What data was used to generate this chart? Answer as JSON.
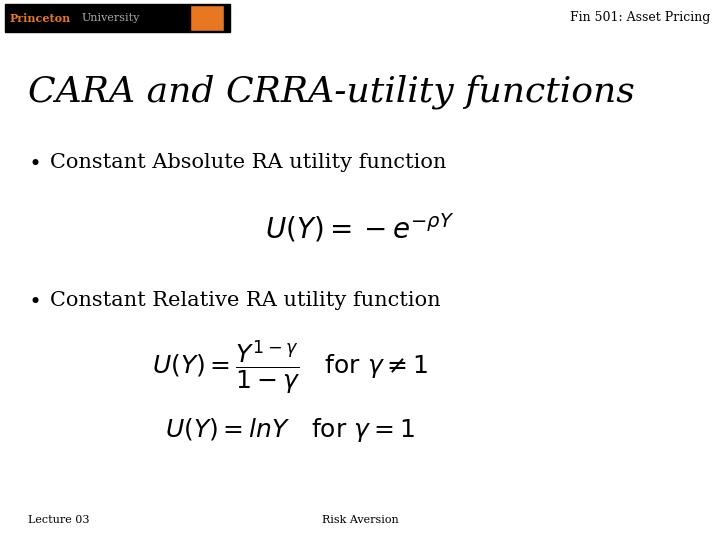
{
  "background_color": "#ffffff",
  "header_text": "Fin 501: Asset Pricing",
  "header_fontsize": 9,
  "header_color": "#000000",
  "title_text": "CARA and CRRA-utility functions",
  "title_fontsize": 26,
  "title_color": "#000000",
  "bullet1_text": "Constant Absolute RA utility function",
  "bullet1_fontsize": 15,
  "bullet_color": "#000000",
  "formula1": "$U(Y) = -e^{-\\rho Y}$",
  "formula1_fontsize": 20,
  "bullet2_text": "Constant Relative RA utility function",
  "bullet2_fontsize": 15,
  "formula2a_fontsize": 18,
  "formula2b_fontsize": 18,
  "footer_left": "Lecture 03",
  "footer_center": "Risk Aversion",
  "footer_fontsize": 8,
  "footer_color": "#000000",
  "logo_bg_color": "#000000",
  "logo_text_princeton": "Princeton",
  "logo_text_university": "University",
  "logo_text_color_princeton": "#e87722",
  "logo_text_color_university": "#aaaaaa",
  "logo_fontsize": 8,
  "shield_color": "#e87722"
}
